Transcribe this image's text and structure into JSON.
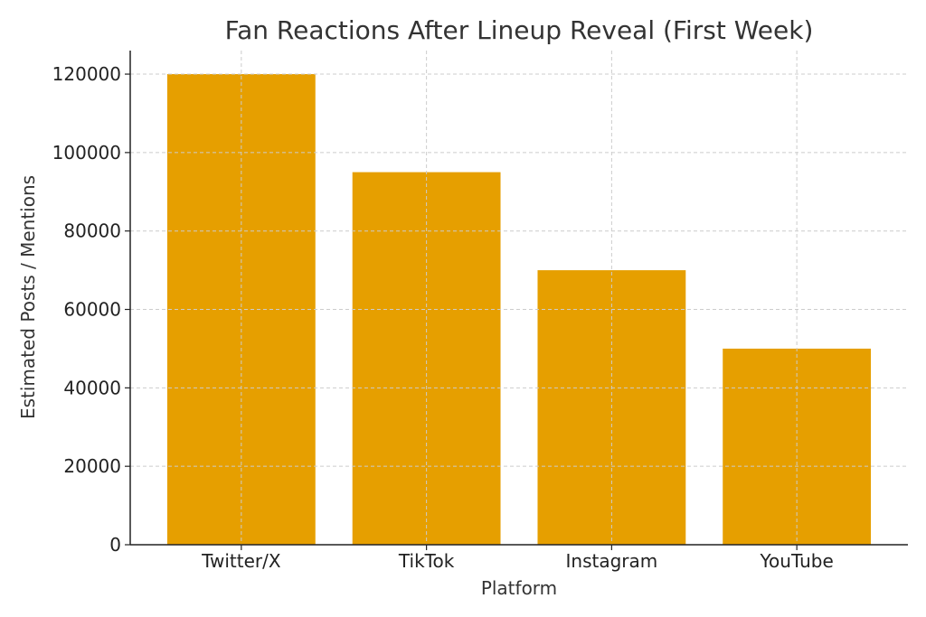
{
  "chart_data": {
    "type": "bar",
    "title": "Fan Reactions After Lineup Reveal (First Week)",
    "xlabel": "Platform",
    "ylabel": "Estimated Posts / Mentions",
    "categories": [
      "Twitter/X",
      "TikTok",
      "Instagram",
      "YouTube"
    ],
    "values": [
      120000,
      95000,
      70000,
      50000
    ],
    "ylim": [
      0,
      126000
    ],
    "yticks": [
      0,
      20000,
      40000,
      60000,
      80000,
      100000,
      120000
    ],
    "grid": true,
    "bar_color": "#E69F00"
  }
}
